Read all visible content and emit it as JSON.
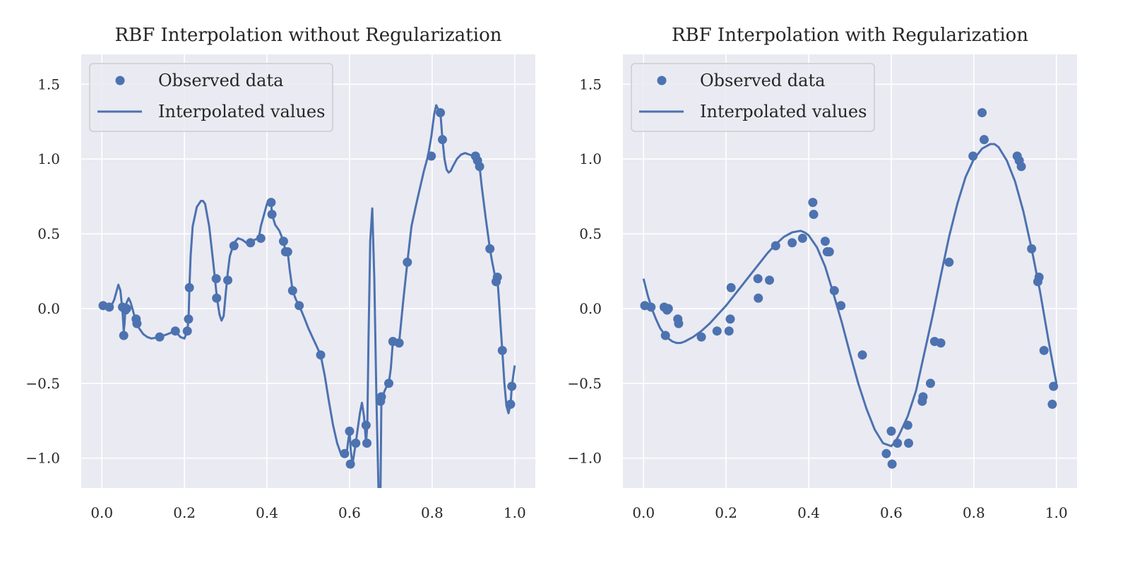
{
  "colors": {
    "series": "#4c72b0",
    "panel": "#eaeaf2",
    "grid": "#ffffff"
  },
  "chart_data": [
    {
      "type": "scatter+line",
      "title": "RBF Interpolation without Regularization",
      "xlim": [
        -0.05,
        1.05
      ],
      "ylim": [
        -1.2,
        1.7
      ],
      "xticks": [
        0.0,
        0.2,
        0.4,
        0.6,
        0.8,
        1.0
      ],
      "xtick_labels": [
        "0.0",
        "0.2",
        "0.4",
        "0.6",
        "0.8",
        "1.0"
      ],
      "yticks": [
        -1.0,
        -0.5,
        0.0,
        0.5,
        1.0,
        1.5
      ],
      "ytick_labels": [
        "−1.0",
        "−0.5",
        "0.0",
        "0.5",
        "1.0",
        "1.5"
      ],
      "grid": true,
      "legend_position": "upper-left",
      "legend": [
        "Observed data",
        "Interpolated values"
      ],
      "series": [
        {
          "name": "Observed data",
          "kind": "points",
          "x": [
            0.003,
            0.018,
            0.05,
            0.053,
            0.057,
            0.06,
            0.083,
            0.085,
            0.14,
            0.178,
            0.207,
            0.21,
            0.212,
            0.277,
            0.278,
            0.305,
            0.32,
            0.36,
            0.385,
            0.41,
            0.412,
            0.44,
            0.445,
            0.45,
            0.462,
            0.478,
            0.53,
            0.588,
            0.6,
            0.602,
            0.615,
            0.64,
            0.642,
            0.675,
            0.677,
            0.695,
            0.705,
            0.72,
            0.74,
            0.798,
            0.82,
            0.825,
            0.905,
            0.91,
            0.915,
            0.94,
            0.955,
            0.958,
            0.97,
            0.99,
            0.993
          ],
          "y": [
            0.02,
            0.01,
            0.01,
            -0.18,
            -0.01,
            0.0,
            -0.07,
            -0.1,
            -0.19,
            -0.15,
            -0.15,
            -0.07,
            0.14,
            0.2,
            0.07,
            0.19,
            0.42,
            0.44,
            0.47,
            0.71,
            0.63,
            0.45,
            0.38,
            0.38,
            0.12,
            0.02,
            -0.31,
            -0.97,
            -0.82,
            -1.04,
            -0.9,
            -0.78,
            -0.9,
            -0.62,
            -0.59,
            -0.5,
            -0.22,
            -0.23,
            0.31,
            1.02,
            1.31,
            1.13,
            1.02,
            0.99,
            0.95,
            0.4,
            0.18,
            0.21,
            -0.28,
            -0.64,
            -0.52
          ]
        },
        {
          "name": "Interpolated values",
          "kind": "line",
          "x": [
            0.0,
            0.01,
            0.02,
            0.03,
            0.04,
            0.045,
            0.05,
            0.053,
            0.055,
            0.057,
            0.06,
            0.065,
            0.07,
            0.08,
            0.09,
            0.1,
            0.11,
            0.12,
            0.14,
            0.16,
            0.178,
            0.19,
            0.2,
            0.207,
            0.21,
            0.212,
            0.215,
            0.22,
            0.23,
            0.24,
            0.245,
            0.25,
            0.26,
            0.27,
            0.277,
            0.28,
            0.285,
            0.29,
            0.295,
            0.3,
            0.305,
            0.31,
            0.32,
            0.33,
            0.34,
            0.35,
            0.36,
            0.37,
            0.38,
            0.385,
            0.39,
            0.4,
            0.405,
            0.41,
            0.412,
            0.42,
            0.43,
            0.44,
            0.445,
            0.45,
            0.455,
            0.462,
            0.47,
            0.478,
            0.49,
            0.5,
            0.51,
            0.52,
            0.53,
            0.54,
            0.55,
            0.56,
            0.57,
            0.58,
            0.585,
            0.588,
            0.59,
            0.593,
            0.596,
            0.6,
            0.603,
            0.607,
            0.61,
            0.615,
            0.62,
            0.625,
            0.63,
            0.635,
            0.64,
            0.643,
            0.646,
            0.65,
            0.655,
            0.66,
            0.665,
            0.67,
            0.672,
            0.675,
            0.677,
            0.68,
            0.685,
            0.69,
            0.695,
            0.7,
            0.705,
            0.71,
            0.72,
            0.73,
            0.74,
            0.75,
            0.76,
            0.77,
            0.78,
            0.79,
            0.798,
            0.805,
            0.81,
            0.815,
            0.82,
            0.825,
            0.83,
            0.835,
            0.84,
            0.845,
            0.85,
            0.86,
            0.87,
            0.88,
            0.89,
            0.9,
            0.905,
            0.91,
            0.915,
            0.92,
            0.93,
            0.94,
            0.945,
            0.95,
            0.955,
            0.958,
            0.962,
            0.966,
            0.97,
            0.975,
            0.98,
            0.985,
            0.99,
            0.993,
            0.997,
            1.0
          ],
          "y": [
            0.02,
            0.02,
            0.0,
            0.06,
            0.16,
            0.12,
            -0.02,
            -0.15,
            -0.1,
            0.0,
            0.04,
            0.07,
            0.04,
            -0.06,
            -0.13,
            -0.17,
            -0.19,
            -0.2,
            -0.19,
            -0.17,
            -0.15,
            -0.19,
            -0.2,
            -0.15,
            -0.07,
            0.14,
            0.35,
            0.55,
            0.68,
            0.72,
            0.72,
            0.7,
            0.55,
            0.3,
            0.12,
            0.05,
            -0.04,
            -0.08,
            -0.05,
            0.1,
            0.24,
            0.35,
            0.44,
            0.47,
            0.46,
            0.44,
            0.44,
            0.46,
            0.47,
            0.55,
            0.6,
            0.7,
            0.72,
            0.71,
            0.63,
            0.56,
            0.52,
            0.45,
            0.38,
            0.38,
            0.26,
            0.12,
            0.06,
            0.02,
            -0.06,
            -0.13,
            -0.19,
            -0.25,
            -0.31,
            -0.45,
            -0.62,
            -0.78,
            -0.9,
            -0.98,
            -0.99,
            -0.97,
            -0.95,
            -0.97,
            -0.9,
            -0.82,
            -0.95,
            -1.04,
            -0.99,
            -0.9,
            -0.8,
            -0.7,
            -0.63,
            -0.72,
            -0.9,
            -0.78,
            -0.2,
            0.45,
            0.67,
            0.2,
            -0.6,
            -1.2,
            -1.3,
            -1.2,
            -0.62,
            -0.59,
            -0.55,
            -0.52,
            -0.5,
            -0.4,
            -0.22,
            -0.22,
            -0.23,
            0.05,
            0.31,
            0.55,
            0.68,
            0.8,
            0.92,
            1.02,
            1.15,
            1.3,
            1.36,
            1.33,
            1.31,
            1.13,
            1.0,
            0.93,
            0.91,
            0.92,
            0.95,
            1.0,
            1.03,
            1.04,
            1.03,
            1.02,
            1.01,
            0.99,
            0.95,
            0.82,
            0.6,
            0.4,
            0.32,
            0.25,
            0.18,
            0.21,
            0.05,
            -0.12,
            -0.28,
            -0.5,
            -0.65,
            -0.7,
            -0.64,
            -0.52,
            -0.44,
            -0.38
          ]
        }
      ]
    },
    {
      "type": "scatter+line",
      "title": "RBF Interpolation with Regularization",
      "xlim": [
        -0.05,
        1.05
      ],
      "ylim": [
        -1.2,
        1.7
      ],
      "xticks": [
        0.0,
        0.2,
        0.4,
        0.6,
        0.8,
        1.0
      ],
      "xtick_labels": [
        "0.0",
        "0.2",
        "0.4",
        "0.6",
        "0.8",
        "1.0"
      ],
      "yticks": [
        -1.0,
        -0.5,
        0.0,
        0.5,
        1.0,
        1.5
      ],
      "ytick_labels": [
        "−1.0",
        "−0.5",
        "0.0",
        "0.5",
        "1.0",
        "1.5"
      ],
      "grid": true,
      "legend_position": "upper-left",
      "legend": [
        "Observed data",
        "Interpolated values"
      ],
      "series": [
        {
          "name": "Observed data",
          "kind": "points",
          "x": [
            0.003,
            0.018,
            0.05,
            0.053,
            0.057,
            0.06,
            0.083,
            0.085,
            0.14,
            0.178,
            0.207,
            0.21,
            0.212,
            0.277,
            0.278,
            0.305,
            0.32,
            0.36,
            0.385,
            0.41,
            0.412,
            0.44,
            0.445,
            0.45,
            0.462,
            0.478,
            0.53,
            0.588,
            0.6,
            0.602,
            0.615,
            0.64,
            0.642,
            0.675,
            0.677,
            0.695,
            0.705,
            0.72,
            0.74,
            0.798,
            0.82,
            0.825,
            0.905,
            0.91,
            0.915,
            0.94,
            0.955,
            0.958,
            0.97,
            0.99,
            0.993
          ],
          "y": [
            0.02,
            0.01,
            0.01,
            -0.18,
            -0.01,
            0.0,
            -0.07,
            -0.1,
            -0.19,
            -0.15,
            -0.15,
            -0.07,
            0.14,
            0.2,
            0.07,
            0.19,
            0.42,
            0.44,
            0.47,
            0.71,
            0.63,
            0.45,
            0.38,
            0.38,
            0.12,
            0.02,
            -0.31,
            -0.97,
            -0.82,
            -1.04,
            -0.9,
            -0.78,
            -0.9,
            -0.62,
            -0.59,
            -0.5,
            -0.22,
            -0.23,
            0.31,
            1.02,
            1.31,
            1.13,
            1.02,
            0.99,
            0.95,
            0.4,
            0.18,
            0.21,
            -0.28,
            -0.64,
            -0.52
          ]
        },
        {
          "name": "Interpolated values",
          "kind": "line",
          "x": [
            0.0,
            0.01,
            0.02,
            0.03,
            0.04,
            0.05,
            0.06,
            0.07,
            0.08,
            0.09,
            0.1,
            0.12,
            0.14,
            0.16,
            0.18,
            0.2,
            0.22,
            0.24,
            0.26,
            0.28,
            0.3,
            0.32,
            0.34,
            0.36,
            0.38,
            0.39,
            0.4,
            0.42,
            0.44,
            0.46,
            0.48,
            0.5,
            0.52,
            0.54,
            0.56,
            0.58,
            0.6,
            0.61,
            0.62,
            0.64,
            0.66,
            0.68,
            0.7,
            0.72,
            0.74,
            0.76,
            0.78,
            0.8,
            0.82,
            0.84,
            0.85,
            0.86,
            0.88,
            0.9,
            0.92,
            0.94,
            0.96,
            0.98,
            0.99,
            1.0
          ],
          "y": [
            0.2,
            0.09,
            0.0,
            -0.07,
            -0.13,
            -0.17,
            -0.2,
            -0.22,
            -0.23,
            -0.23,
            -0.22,
            -0.19,
            -0.15,
            -0.1,
            -0.04,
            0.02,
            0.09,
            0.16,
            0.23,
            0.3,
            0.37,
            0.43,
            0.48,
            0.51,
            0.52,
            0.51,
            0.49,
            0.41,
            0.28,
            0.1,
            -0.09,
            -0.3,
            -0.5,
            -0.67,
            -0.81,
            -0.9,
            -0.92,
            -0.89,
            -0.84,
            -0.72,
            -0.55,
            -0.3,
            -0.05,
            0.22,
            0.48,
            0.7,
            0.88,
            1.0,
            1.07,
            1.1,
            1.1,
            1.08,
            0.99,
            0.85,
            0.65,
            0.4,
            0.12,
            -0.2,
            -0.35,
            -0.5
          ]
        }
      ]
    }
  ]
}
